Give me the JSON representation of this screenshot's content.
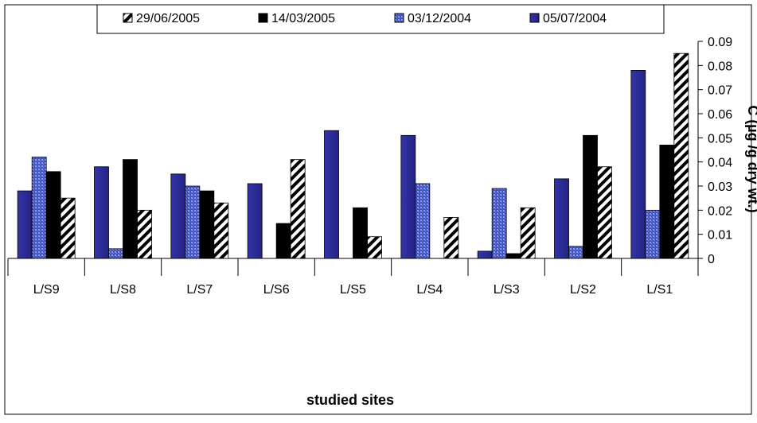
{
  "chart_data": {
    "type": "bar",
    "title": "",
    "xlabel": "studied sites",
    "ylabel": "C (µg /g dry wt.)",
    "ylim": [
      0,
      0.09
    ],
    "yticks": [
      "0",
      "0.01",
      "0.02",
      "0.03",
      "0.04",
      "0.05",
      "0.06",
      "0.07",
      "0.08",
      "0.09"
    ],
    "y_axis_side": "right",
    "legend_position": "top",
    "grid": false,
    "categories": [
      "L/S9",
      "L/S8",
      "L/S7",
      "L/S6",
      "L/S5",
      "L/S4",
      "L/S3",
      "L/S2",
      "L/S1"
    ],
    "series": [
      {
        "name": "05/07/2004",
        "pattern": "solid-blue",
        "color": "#2b2b9a",
        "values": [
          0.028,
          0.038,
          0.035,
          0.031,
          0.053,
          0.051,
          0.003,
          0.033,
          0.078
        ]
      },
      {
        "name": "03/12/2004",
        "pattern": "dotted-blue",
        "color": "#4a5fd0",
        "values": [
          0.042,
          0.004,
          0.03,
          0.0,
          0.0,
          0.031,
          0.029,
          0.005,
          0.02
        ]
      },
      {
        "name": "14/03/2005",
        "pattern": "solid-black",
        "color": "#000000",
        "values": [
          0.036,
          0.041,
          0.028,
          0.0145,
          0.021,
          0.0,
          0.002,
          0.051,
          0.047
        ]
      },
      {
        "name": "29/06/2005",
        "pattern": "diagonal-stripes",
        "color": "#000000",
        "values": [
          0.025,
          0.02,
          0.023,
          0.041,
          0.009,
          0.017,
          0.021,
          0.038,
          0.085
        ]
      }
    ],
    "legend_order": [
      "29/06/2005",
      "14/03/2005",
      "03/12/2004",
      "05/07/2004"
    ]
  }
}
